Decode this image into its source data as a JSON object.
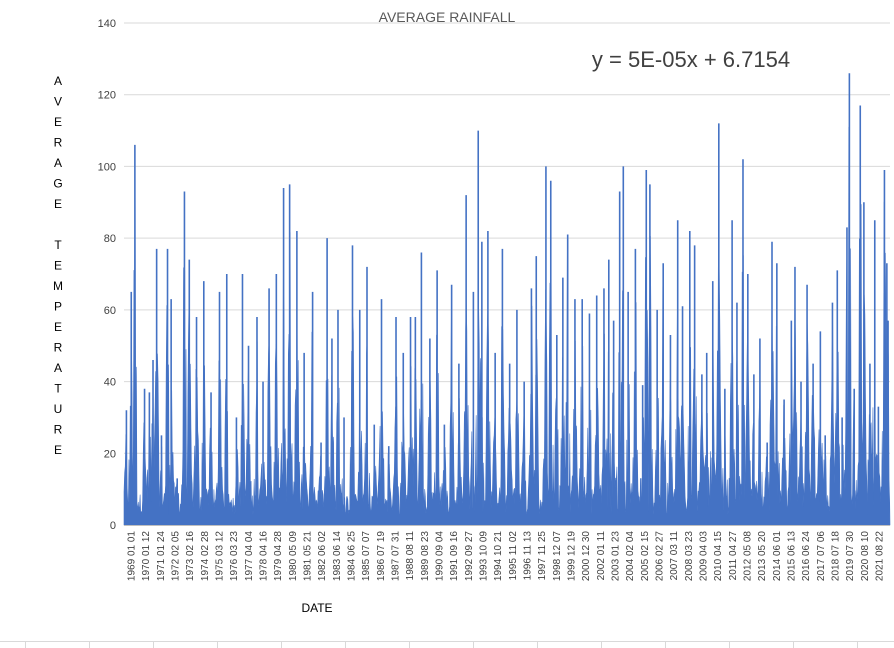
{
  "chart_data": {
    "type": "bar",
    "title": "AVERAGE RAINFALL",
    "trendline_equation": "y = 5E-05x + 6.7154",
    "xlabel": "DATE",
    "ylabel": "AVERAGE TEMPERATURE",
    "ylim": [
      0,
      140
    ],
    "y_ticks": [
      "0",
      "20",
      "40",
      "60",
      "80",
      "100",
      "120",
      "140"
    ],
    "x_tick_labels": [
      "1969 01 01",
      "1970 01 12",
      "1971 01 24",
      "1972 02 05",
      "1973 02 16",
      "1974 02 28",
      "1975 03 12",
      "1976 03 23",
      "1977 04 04",
      "1978 04 16",
      "1979 04 28",
      "1980 05 09",
      "1981 05 21",
      "1982 06 02",
      "1983 06 14",
      "1984 06 25",
      "1985 07 07",
      "1986 07 19",
      "1987 07 31",
      "1988 08 11",
      "1989 08 23",
      "1990 09 04",
      "1991 09 16",
      "1992 09 27",
      "1993 10 09",
      "1994 10 21",
      "1995 11 02",
      "1996 11 13",
      "1997 11 25",
      "1998 12 07",
      "1999 12 19",
      "2000 12 30",
      "2002 01 11",
      "2003 01 23",
      "2004 02 04",
      "2005 02 15",
      "2006 02 27",
      "2007 03 11",
      "2008 03 23",
      "2009 04 03",
      "2010 04 15",
      "2011 04 27",
      "2012 05 08",
      "2013 05 20",
      "2014 06 01",
      "2015 06 13",
      "2016 06 24",
      "2017 07 06",
      "2018 07 18",
      "2019 07 30",
      "2020 08 10",
      "2021 08 22"
    ],
    "peaks": [
      {
        "x": "1969 03",
        "y": 32
      },
      {
        "x": "1969 07",
        "y": 65
      },
      {
        "x": "1969 10",
        "y": 106
      },
      {
        "x": "1970 06",
        "y": 38
      },
      {
        "x": "1970 10",
        "y": 37
      },
      {
        "x": "1971 01",
        "y": 46
      },
      {
        "x": "1971 04",
        "y": 77
      },
      {
        "x": "1971 08",
        "y": 25
      },
      {
        "x": "1972 01",
        "y": 77
      },
      {
        "x": "1972 04",
        "y": 63
      },
      {
        "x": "1972 09",
        "y": 13
      },
      {
        "x": "1973 03",
        "y": 93
      },
      {
        "x": "1973 07",
        "y": 74
      },
      {
        "x": "1974 01",
        "y": 58
      },
      {
        "x": "1974 07",
        "y": 68
      },
      {
        "x": "1975 01",
        "y": 37
      },
      {
        "x": "1975 08",
        "y": 65
      },
      {
        "x": "1976 02",
        "y": 70
      },
      {
        "x": "1976 10",
        "y": 30
      },
      {
        "x": "1977 03",
        "y": 70
      },
      {
        "x": "1977 08",
        "y": 50
      },
      {
        "x": "1978 03",
        "y": 58
      },
      {
        "x": "1978 08",
        "y": 40
      },
      {
        "x": "1979 01",
        "y": 66
      },
      {
        "x": "1979 07",
        "y": 70
      },
      {
        "x": "1980 01",
        "y": 94
      },
      {
        "x": "1980 06",
        "y": 95
      },
      {
        "x": "1980 12",
        "y": 82
      },
      {
        "x": "1981 06",
        "y": 48
      },
      {
        "x": "1982 01",
        "y": 65
      },
      {
        "x": "1982 08",
        "y": 23
      },
      {
        "x": "1983 01",
        "y": 80
      },
      {
        "x": "1983 05",
        "y": 52
      },
      {
        "x": "1983 10",
        "y": 60
      },
      {
        "x": "1984 03",
        "y": 30
      },
      {
        "x": "1984 10",
        "y": 78
      },
      {
        "x": "1985 04",
        "y": 60
      },
      {
        "x": "1985 10",
        "y": 72
      },
      {
        "x": "1986 04",
        "y": 28
      },
      {
        "x": "1986 10",
        "y": 63
      },
      {
        "x": "1987 04",
        "y": 22
      },
      {
        "x": "1987 10",
        "y": 58
      },
      {
        "x": "1988 04",
        "y": 48
      },
      {
        "x": "1988 10",
        "y": 58
      },
      {
        "x": "1989 02",
        "y": 58
      },
      {
        "x": "1989 07",
        "y": 76
      },
      {
        "x": "1990 02",
        "y": 52
      },
      {
        "x": "1990 08",
        "y": 71
      },
      {
        "x": "1991 02",
        "y": 28
      },
      {
        "x": "1991 08",
        "y": 67
      },
      {
        "x": "1992 02",
        "y": 45
      },
      {
        "x": "1992 08",
        "y": 92
      },
      {
        "x": "1993 02",
        "y": 65
      },
      {
        "x": "1993 06",
        "y": 110
      },
      {
        "x": "1993 09",
        "y": 79
      },
      {
        "x": "1994 02",
        "y": 82
      },
      {
        "x": "1994 08",
        "y": 48
      },
      {
        "x": "1995 02",
        "y": 77
      },
      {
        "x": "1995 08",
        "y": 45
      },
      {
        "x": "1996 02",
        "y": 60
      },
      {
        "x": "1996 08",
        "y": 40
      },
      {
        "x": "1997 02",
        "y": 66
      },
      {
        "x": "1997 06",
        "y": 75
      },
      {
        "x": "1998 02",
        "y": 100
      },
      {
        "x": "1998 06",
        "y": 96
      },
      {
        "x": "1998 11",
        "y": 53
      },
      {
        "x": "1999 04",
        "y": 69
      },
      {
        "x": "1999 08",
        "y": 81
      },
      {
        "x": "2000 02",
        "y": 63
      },
      {
        "x": "2000 08",
        "y": 63
      },
      {
        "x": "2001 02",
        "y": 59
      },
      {
        "x": "2001 08",
        "y": 64
      },
      {
        "x": "2002 02",
        "y": 66
      },
      {
        "x": "2002 06",
        "y": 74
      },
      {
        "x": "2002 10",
        "y": 57
      },
      {
        "x": "2003 03",
        "y": 93
      },
      {
        "x": "2003 06",
        "y": 100
      },
      {
        "x": "2003 10",
        "y": 65
      },
      {
        "x": "2004 04",
        "y": 77
      },
      {
        "x": "2004 10",
        "y": 39
      },
      {
        "x": "2005 01",
        "y": 99
      },
      {
        "x": "2005 04",
        "y": 95
      },
      {
        "x": "2005 10",
        "y": 60
      },
      {
        "x": "2006 03",
        "y": 73
      },
      {
        "x": "2006 09",
        "y": 53
      },
      {
        "x": "2007 03",
        "y": 85
      },
      {
        "x": "2007 07",
        "y": 61
      },
      {
        "x": "2008 01",
        "y": 82
      },
      {
        "x": "2008 05",
        "y": 78
      },
      {
        "x": "2008 11",
        "y": 42
      },
      {
        "x": "2009 03",
        "y": 48
      },
      {
        "x": "2009 08",
        "y": 68
      },
      {
        "x": "2010 01",
        "y": 112
      },
      {
        "x": "2010 06",
        "y": 38
      },
      {
        "x": "2010 12",
        "y": 85
      },
      {
        "x": "2011 04",
        "y": 62
      },
      {
        "x": "2011 09",
        "y": 102
      },
      {
        "x": "2012 01",
        "y": 70
      },
      {
        "x": "2012 06",
        "y": 42
      },
      {
        "x": "2012 11",
        "y": 52
      },
      {
        "x": "2013 05",
        "y": 23
      },
      {
        "x": "2013 09",
        "y": 79
      },
      {
        "x": "2014 01",
        "y": 73
      },
      {
        "x": "2014 07",
        "y": 35
      },
      {
        "x": "2015 01",
        "y": 57
      },
      {
        "x": "2015 04",
        "y": 72
      },
      {
        "x": "2015 09",
        "y": 40
      },
      {
        "x": "2016 02",
        "y": 67
      },
      {
        "x": "2016 07",
        "y": 45
      },
      {
        "x": "2017 01",
        "y": 54
      },
      {
        "x": "2017 05",
        "y": 25
      },
      {
        "x": "2017 11",
        "y": 62
      },
      {
        "x": "2018 03",
        "y": 71
      },
      {
        "x": "2018 07",
        "y": 30
      },
      {
        "x": "2018 11",
        "y": 83
      },
      {
        "x": "2019 01",
        "y": 126
      },
      {
        "x": "2019 05",
        "y": 38
      },
      {
        "x": "2019 10",
        "y": 117
      },
      {
        "x": "2020 01",
        "y": 90
      },
      {
        "x": "2020 06",
        "y": 45
      },
      {
        "x": "2020 10",
        "y": 85
      },
      {
        "x": "2021 01",
        "y": 33
      },
      {
        "x": "2021 06",
        "y": 99
      },
      {
        "x": "2021 08",
        "y": 73
      },
      {
        "x": "2021 09",
        "y": 57
      }
    ],
    "baseline": 7,
    "color": "#4472c4",
    "grid": true,
    "legend": "none"
  }
}
